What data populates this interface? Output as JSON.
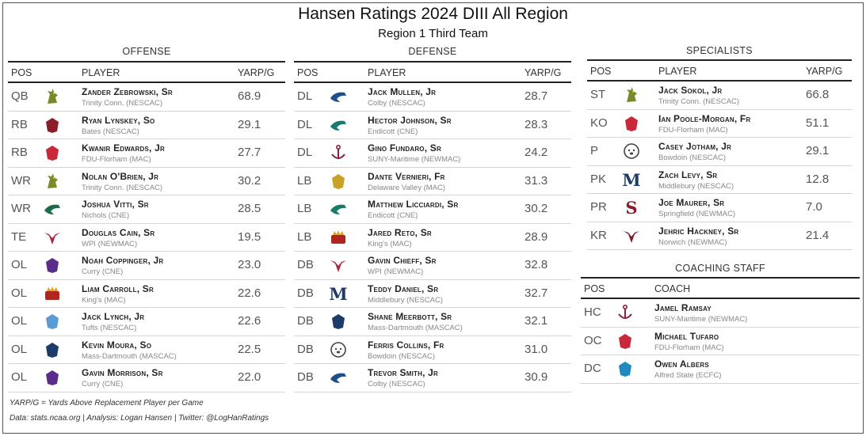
{
  "title": "Hansen Ratings 2024 DIII All Region",
  "subtitle": "Region 1 Third Team",
  "offense": {
    "heading": "OFFENSE",
    "columns": {
      "pos": "POS",
      "player": "PLAYER",
      "value": "YARP/G"
    },
    "rows": [
      {
        "pos": "QB",
        "name": "Zander Zebrowski, Sr",
        "school": "Trinity Conn. (NESCAC)",
        "value": "68.9",
        "logo": "rooster-icon",
        "color": "#7a8a2a"
      },
      {
        "pos": "RB",
        "name": "Ryan Lynskey, So",
        "school": "Bates (NESCAC)",
        "value": "29.1",
        "logo": "bobcat-icon",
        "color": "#8b1e2b"
      },
      {
        "pos": "RB",
        "name": "Kwanir Edwards, Jr",
        "school": "FDU-Florham (MAC)",
        "value": "27.7",
        "logo": "devil-icon",
        "color": "#c8283a"
      },
      {
        "pos": "WR",
        "name": "Nolan O'Brien, Jr",
        "school": "Trinity Conn. (NESCAC)",
        "value": "30.2",
        "logo": "rooster-icon",
        "color": "#7a8a2a"
      },
      {
        "pos": "WR",
        "name": "Joshua Vitti, Sr",
        "school": "Nichols (CNE)",
        "value": "28.5",
        "logo": "bison-icon",
        "color": "#1d6b4a"
      },
      {
        "pos": "TE",
        "name": "Douglas Cain, Sr",
        "school": "WPI (NEWMAC)",
        "value": "19.5",
        "logo": "goat-icon",
        "color": "#b0243a"
      },
      {
        "pos": "OL",
        "name": "Noah Coppinger, Jr",
        "school": "Curry (CNE)",
        "value": "23.0",
        "logo": "colonel-icon",
        "color": "#5b2d8a"
      },
      {
        "pos": "OL",
        "name": "Liam Carroll, Sr",
        "school": "King's (MAC)",
        "value": "22.6",
        "logo": "monarch-icon",
        "color": "#b0261e"
      },
      {
        "pos": "OL",
        "name": "Jack Lynch, Jr",
        "school": "Tufts (NESCAC)",
        "value": "22.6",
        "logo": "elephant-icon",
        "color": "#5b9bd5"
      },
      {
        "pos": "OL",
        "name": "Kevin Moura, So",
        "school": "Mass-Dartmouth (MASCAC)",
        "value": "22.5",
        "logo": "corsair-icon",
        "color": "#1e3a66"
      },
      {
        "pos": "OL",
        "name": "Gavin Morrison, Sr",
        "school": "Curry (CNE)",
        "value": "22.0",
        "logo": "colonel-icon",
        "color": "#5b2d8a"
      }
    ]
  },
  "defense": {
    "heading": "DEFENSE",
    "columns": {
      "pos": "POS",
      "player": "PLAYER",
      "value": "YARP/G"
    },
    "rows": [
      {
        "pos": "DL",
        "name": "Jack Mullen, Jr",
        "school": "Colby (NESCAC)",
        "value": "28.7",
        "logo": "mule-icon",
        "color": "#1f4e8a"
      },
      {
        "pos": "DL",
        "name": "Hector Johnson, Sr",
        "school": "Endicott (CNE)",
        "value": "28.3",
        "logo": "gull-icon",
        "color": "#1b7a6e"
      },
      {
        "pos": "DL",
        "name": "Gino Fundaro, Sr",
        "school": "SUNY-Maritime (NEWMAC)",
        "value": "24.2",
        "logo": "anchor-icon",
        "color": "#8b1e3f"
      },
      {
        "pos": "LB",
        "name": "Dante Vernieri, Fr",
        "school": "Delaware Valley (MAC)",
        "value": "31.3",
        "logo": "ram-icon",
        "color": "#c9a227"
      },
      {
        "pos": "LB",
        "name": "Matthew Licciardi, Sr",
        "school": "Endicott (CNE)",
        "value": "30.2",
        "logo": "gull-icon",
        "color": "#1b7a6e"
      },
      {
        "pos": "LB",
        "name": "Jared Reto, Sr",
        "school": "King's (MAC)",
        "value": "28.9",
        "logo": "monarch-icon",
        "color": "#b0261e"
      },
      {
        "pos": "DB",
        "name": "Gavin Chieff, Sr",
        "school": "WPI (NEWMAC)",
        "value": "32.8",
        "logo": "goat-icon",
        "color": "#b0243a"
      },
      {
        "pos": "DB",
        "name": "Teddy Daniel, Sr",
        "school": "Middlebury (NESCAC)",
        "value": "32.7",
        "logo": "m-letter-icon",
        "color": "#1e3a66"
      },
      {
        "pos": "DB",
        "name": "Shane Meerbott, Sr",
        "school": "Mass-Dartmouth (MASCAC)",
        "value": "32.1",
        "logo": "corsair-icon",
        "color": "#1e3a66"
      },
      {
        "pos": "DB",
        "name": "Ferris Collins, Fr",
        "school": "Bowdoin (NESCAC)",
        "value": "31.0",
        "logo": "polar-bear-icon",
        "color": "#444444"
      },
      {
        "pos": "DB",
        "name": "Trevor Smith, Jr",
        "school": "Colby (NESCAC)",
        "value": "30.9",
        "logo": "mule-icon",
        "color": "#1f4e8a"
      }
    ]
  },
  "specialists": {
    "heading": "SPECIALISTS",
    "columns": {
      "pos": "POS",
      "player": "PLAYER",
      "value": "YARP/G"
    },
    "rows": [
      {
        "pos": "ST",
        "name": "Jack Sokol, Jr",
        "school": "Trinity Conn. (NESCAC)",
        "value": "66.8",
        "logo": "rooster-icon",
        "color": "#7a8a2a"
      },
      {
        "pos": "KO",
        "name": "Ian Poole-Morgan, Fr",
        "school": "FDU-Florham (MAC)",
        "value": "51.1",
        "logo": "devil-icon",
        "color": "#c8283a"
      },
      {
        "pos": "P",
        "name": "Casey Jotham, Jr",
        "school": "Bowdoin (NESCAC)",
        "value": "29.1",
        "logo": "polar-bear-icon",
        "color": "#444444"
      },
      {
        "pos": "PK",
        "name": "Zach Levy, Sr",
        "school": "Middlebury (NESCAC)",
        "value": "12.8",
        "logo": "m-letter-icon",
        "color": "#1e3a66"
      },
      {
        "pos": "PR",
        "name": "Joe Maurer, Sr",
        "school": "Springfield (NEWMAC)",
        "value": "7.0",
        "logo": "s-letter-icon",
        "color": "#8b1e2b"
      },
      {
        "pos": "KR",
        "name": "Jehric Hackney, Sr",
        "school": "Norwich (NEWMAC)",
        "value": "21.4",
        "logo": "cadet-icon",
        "color": "#7a1e2b"
      }
    ]
  },
  "coaching": {
    "heading": "COACHING STAFF",
    "columns": {
      "pos": "POS",
      "player": "COACH"
    },
    "rows": [
      {
        "pos": "HC",
        "name": "Jamel Ramsay",
        "school": "SUNY-Maritime (NEWMAC)",
        "logo": "anchor-icon",
        "color": "#8b1e3f"
      },
      {
        "pos": "OC",
        "name": "Michael Tufaro",
        "school": "FDU-Florham (MAC)",
        "logo": "devil-icon",
        "color": "#c8283a"
      },
      {
        "pos": "DC",
        "name": "Owen Albers",
        "school": "Alfred State (ECFC)",
        "logo": "pioneer-icon",
        "color": "#1f8ac0"
      }
    ]
  },
  "footnote": "YARP/G = Yards Above Replacement Player per Game",
  "credit": "Data: stats.ncaa.org | Analysis: Logan Hansen | Twitter: @LogHanRatings"
}
